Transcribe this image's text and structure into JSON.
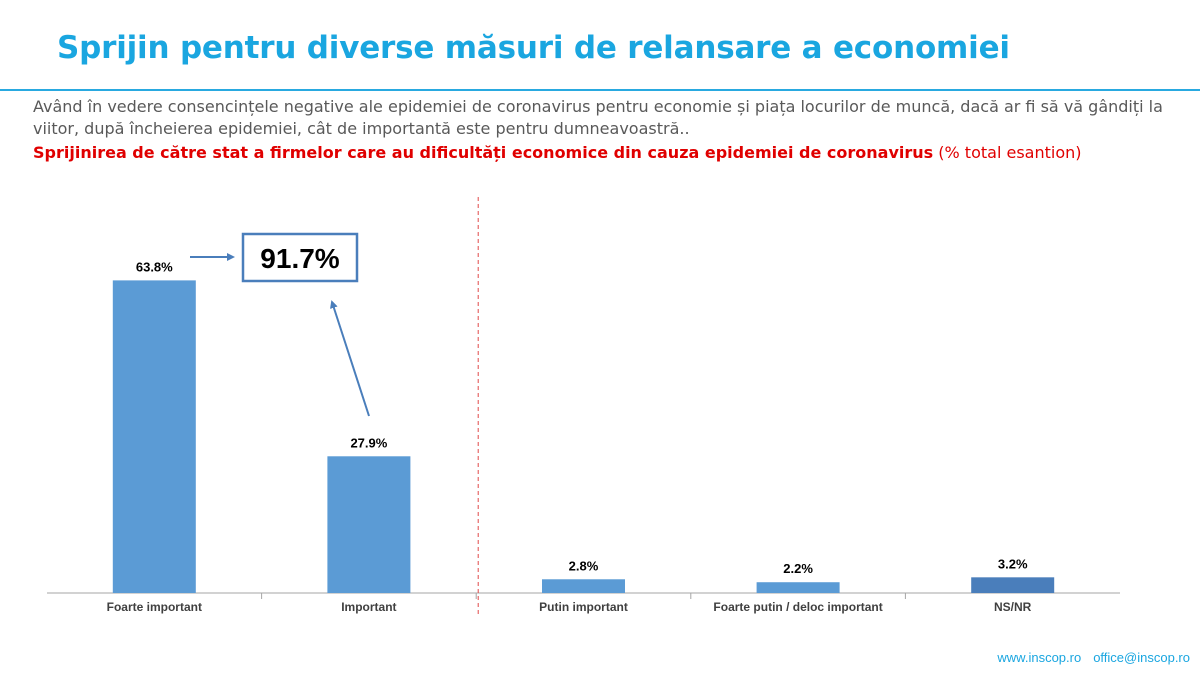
{
  "slide": {
    "title": "Sprijin pentru diverse măsuri de relansare a economiei",
    "question": "Având în vedere consencințele negative ale epidemiei de coronavirus pentru economie și piața locurilor de muncă, dacă ar fi să vă gândiți la viitor, după încheierea epidemiei, cât de importantă este pentru dumneavoastră..",
    "subject": "Sprijinirea de către stat a firmelor care au dificultăți economice din cauza epidemiei de coronavirus",
    "subject_note": "(% total esantion)",
    "footer_web": "www.inscop.ro",
    "footer_email": "office@inscop.ro"
  },
  "chart_data": {
    "type": "bar",
    "categories": [
      "Foarte important",
      "Important",
      "Putin important",
      "Foarte putin / deloc important",
      "NS/NR"
    ],
    "values": [
      63.8,
      27.9,
      2.8,
      2.2,
      3.2
    ],
    "value_labels": [
      "63.8%",
      "27.9%",
      "2.8%",
      "2.2%",
      "3.2%"
    ],
    "bar_colors": [
      "#5b9bd5",
      "#5b9bd5",
      "#5b9bd5",
      "#5b9bd5",
      "#4a7ebb"
    ],
    "ylim": [
      0,
      70
    ],
    "grid": false,
    "legend": "none",
    "annotation": {
      "text": "91.7%",
      "meaning": "Foarte important + Important"
    },
    "divider": "dashed red line between Important and Putin important"
  }
}
